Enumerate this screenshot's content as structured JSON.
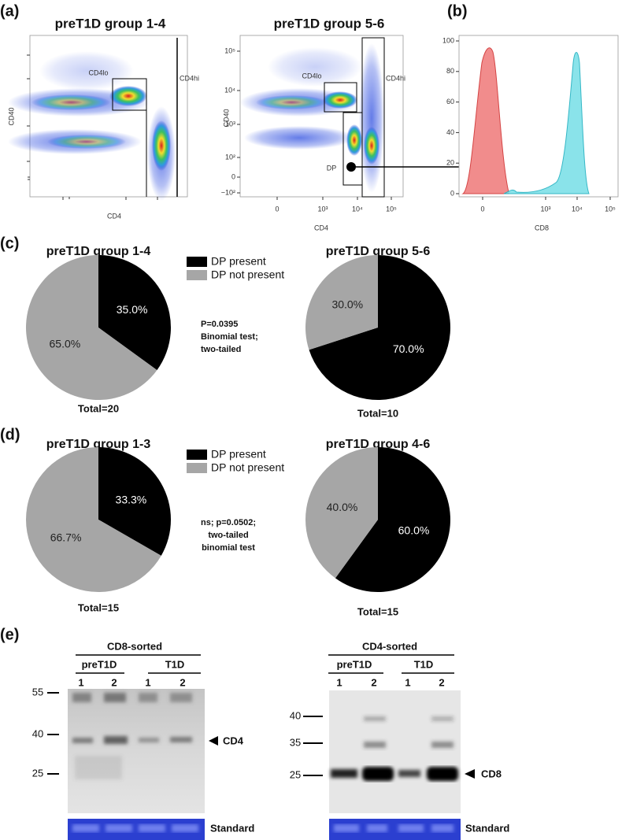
{
  "panel_labels": {
    "a": "(a)",
    "b": "(b)",
    "c": "(c)",
    "d": "(d)",
    "e": "(e)"
  },
  "flow": {
    "plot1": {
      "title": "preT1D group 1-4",
      "y_label": "CD40",
      "x_label": "CD4",
      "gates": [
        "CD4lo",
        "CD4hi"
      ]
    },
    "plot2": {
      "title": "preT1D group 5-6",
      "y_label": "CD40",
      "x_label": "CD4",
      "gates": [
        "CD4lo",
        "CD4hi",
        "DP"
      ],
      "y_ticks": [
        "10⁵",
        "10⁴",
        "10³",
        "10²",
        "0",
        "−10²"
      ],
      "x_ticks": [
        "0",
        "10³",
        "10⁴",
        "10⁵"
      ]
    }
  },
  "histogram": {
    "x_label": "CD8",
    "y_ticks": [
      100,
      80,
      60,
      40,
      20,
      0
    ],
    "x_ticks": [
      "0",
      "10³",
      "10⁴",
      "10⁵"
    ]
  },
  "chart_data": [
    {
      "type": "pie",
      "title": "preT1D group 1-4",
      "categories": [
        "DP present",
        "DP not present"
      ],
      "values": [
        35,
        65
      ],
      "value_labels": [
        "35.0%",
        "65.0%"
      ],
      "colors": [
        "#000000",
        "#a6a6a6"
      ],
      "footer": "Total=20",
      "annotation": [
        "P=0.0395",
        "Binomial test;",
        "two-tailed"
      ]
    },
    {
      "type": "pie",
      "title": "preT1D group 5-6",
      "values": [
        70,
        30
      ],
      "value_labels": [
        "70.0%",
        "30.0%"
      ],
      "colors": [
        "#000000",
        "#a6a6a6"
      ],
      "footer": "Total=10"
    },
    {
      "type": "pie",
      "title": "preT1D group 1-3",
      "categories": [
        "DP present",
        "DP not present"
      ],
      "values": [
        33.3,
        66.7
      ],
      "value_labels": [
        "33.3%",
        "66.7%"
      ],
      "colors": [
        "#000000",
        "#a6a6a6"
      ],
      "footer": "Total=15",
      "annotation": [
        "ns; p=0.0502;",
        "two-tailed",
        "binomial test"
      ]
    },
    {
      "type": "pie",
      "title": "preT1D group 4-6",
      "values": [
        60,
        40
      ],
      "value_labels": [
        "60.0%",
        "40.0%"
      ],
      "colors": [
        "#000000",
        "#a6a6a6"
      ],
      "footer": "Total=15"
    }
  ],
  "blots": {
    "left": {
      "sort": "CD8-sorted",
      "groups": [
        "preT1D",
        "T1D"
      ],
      "lanes": [
        "1",
        "2",
        "1",
        "2"
      ],
      "markers": [
        "55",
        "40",
        "25"
      ],
      "band": "CD4",
      "standard": "Standard"
    },
    "right": {
      "sort": "CD4-sorted",
      "groups": [
        "preT1D",
        "T1D"
      ],
      "lanes": [
        "1",
        "2",
        "1",
        "2"
      ],
      "markers": [
        "40",
        "35",
        "25"
      ],
      "band": "CD8",
      "standard": "Standard"
    }
  }
}
